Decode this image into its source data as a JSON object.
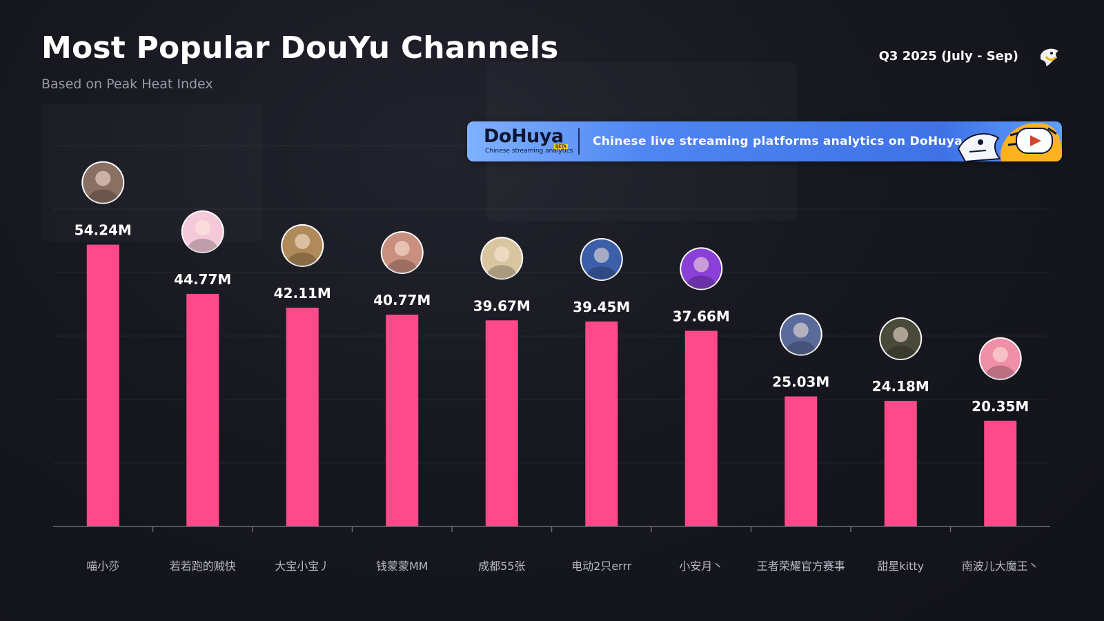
{
  "header": {
    "title": "Most Popular DouYu Channels",
    "subtitle": "Based on Peak Heat Index",
    "period": "Q3 2025 (July - Sep)",
    "logo_icon": "shark-mascot-icon"
  },
  "banner": {
    "brand": "DoHuya",
    "beta": "BETA",
    "tagline": "Chinese streaming analytics",
    "text": "Chinese live streaming platforms analytics on DoHuya.com",
    "mascot_icon": "shark-tiger-play-icon",
    "color": "#4f86f2"
  },
  "colors": {
    "bar": "#ff4a8a",
    "background": "#14151f"
  },
  "chart_data": {
    "type": "bar",
    "categories": [
      "喵小莎",
      "若若跑的贼快",
      "大宝小宝丿",
      "钱蒙蒙MM",
      "成都55张",
      "电动2只errr",
      "小安月丶",
      "王者荣耀官方赛事",
      "甜星kitty",
      "南波儿大魔王丶"
    ],
    "values": [
      54.24,
      44.77,
      42.11,
      40.77,
      39.67,
      39.45,
      37.66,
      25.03,
      24.18,
      20.35
    ],
    "value_labels": [
      "54.24M",
      "44.77M",
      "42.11M",
      "40.77M",
      "39.67M",
      "39.45M",
      "37.66M",
      "25.03M",
      "24.18M",
      "20.35M"
    ],
    "avatars": [
      "avatar-photo-icon",
      "avatar-pink-art-icon",
      "avatar-duo-photo-icon",
      "avatar-photo-icon",
      "avatar-dog-icon",
      "avatar-photo-icon",
      "avatar-purple-art-icon",
      "avatar-kpl-logo-icon",
      "avatar-photo-icon",
      "avatar-anime-icon"
    ],
    "avatar_colors": [
      "#8a6f63",
      "#f6c9da",
      "#b08a5a",
      "#c98f7f",
      "#d9c6a0",
      "#3b5fa8",
      "#8a3fd6",
      "#5a6a9a",
      "#4a4a3a",
      "#f08fa8"
    ],
    "ylim": [
      0,
      60
    ],
    "grid": true,
    "xlabel": "",
    "ylabel": ""
  }
}
